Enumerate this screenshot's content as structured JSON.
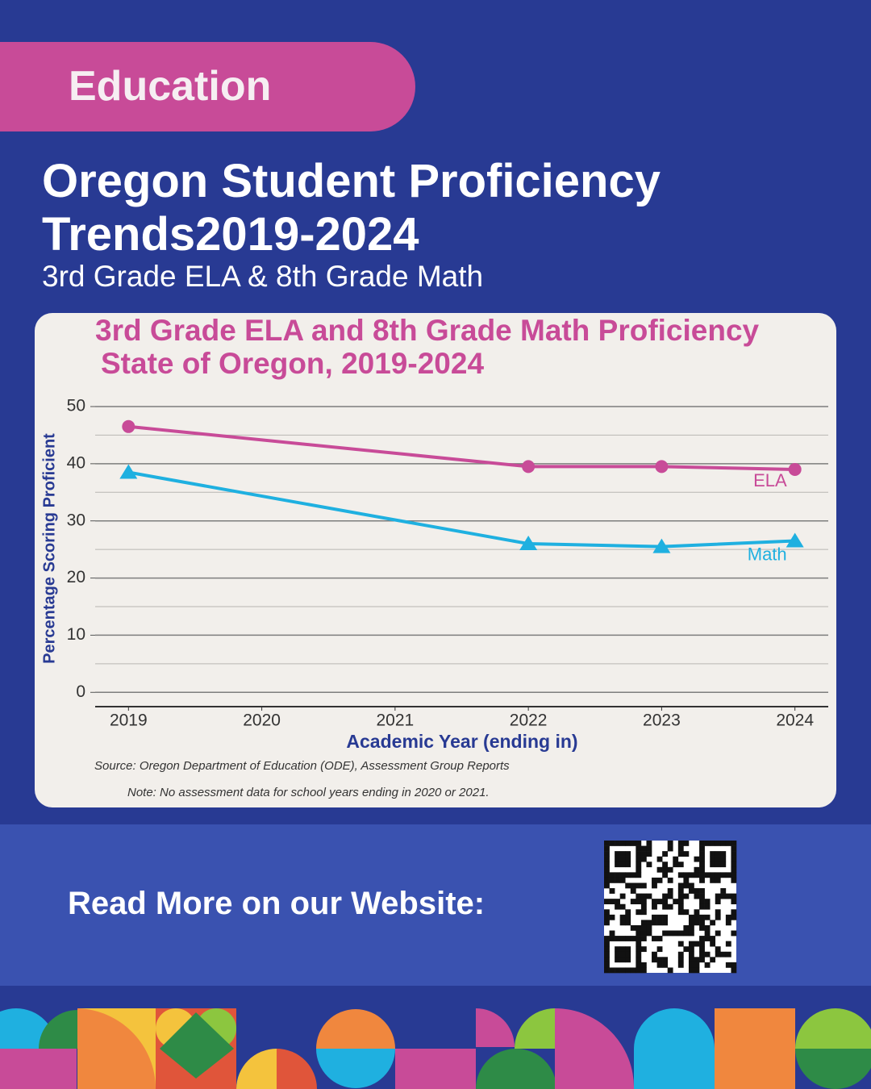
{
  "header": {
    "tag": "Education",
    "title": "Oregon Student Proficiency Trends2019-2024",
    "subtitle": "3rd Grade ELA & 8th Grade Math"
  },
  "chart_data": {
    "type": "line",
    "title": "3rd Grade ELA and 8th Grade Math Proficiency",
    "subtitle": "State of Oregon, 2019-2024",
    "x": [
      2019,
      2022,
      2023,
      2024
    ],
    "series": [
      {
        "name": "ELA",
        "color": "#c84b98",
        "marker": "circle",
        "values": [
          46.5,
          39.5,
          39.5,
          39
        ]
      },
      {
        "name": "Math",
        "color": "#1fb0e0",
        "marker": "triangle",
        "values": [
          38.5,
          26,
          25.5,
          26.5
        ]
      }
    ],
    "xlim": [
      2018.75,
      2024.25
    ],
    "xticks": [
      2019,
      2020,
      2021,
      2022,
      2023,
      2024
    ],
    "ylim": [
      -2.5,
      50
    ],
    "yticks": [
      0,
      10,
      20,
      30,
      40,
      50
    ],
    "yminor": [
      5,
      15,
      25,
      35,
      45
    ],
    "grid": true,
    "y_label": "Percentage Scoring Proficient",
    "x_label": "Academic Year (ending in)",
    "source": "Source: Oregon Department of Education (ODE), Assessment Group Reports",
    "note": "Note: No assessment data for school years ending in 2020 or 2021."
  },
  "footer": {
    "cta": "Read More on our Website:"
  }
}
